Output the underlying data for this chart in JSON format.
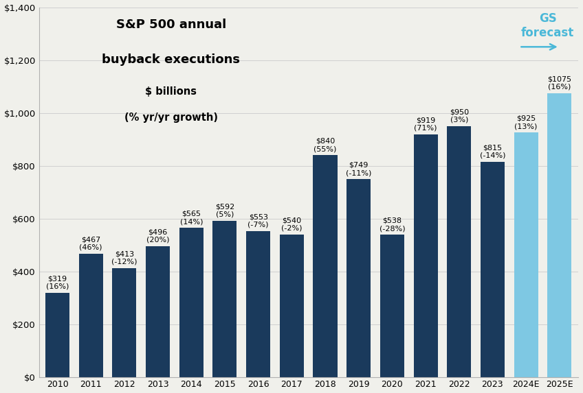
{
  "years": [
    "2010",
    "2011",
    "2012",
    "2013",
    "2014",
    "2015",
    "2016",
    "2017",
    "2018",
    "2019",
    "2020",
    "2021",
    "2022",
    "2023",
    "2024E",
    "2025E"
  ],
  "values": [
    319,
    467,
    413,
    496,
    565,
    592,
    553,
    540,
    840,
    749,
    538,
    919,
    950,
    815,
    925,
    1075
  ],
  "labels": [
    "$319\n(16%)",
    "$467\n(46%)",
    "$413\n(-12%)",
    "$496\n(20%)",
    "$565\n(14%)",
    "$592\n(5%)",
    "$553\n(-7%)",
    "$540\n(-2%)",
    "$840\n(55%)",
    "$749\n(-11%)",
    "$538\n(-28%)",
    "$919\n(71%)",
    "$950\n(3%)",
    "$815\n(-14%)",
    "$925\n(13%)",
    "$1075\n(16%)"
  ],
  "bar_colors": [
    "#1a3a5c",
    "#1a3a5c",
    "#1a3a5c",
    "#1a3a5c",
    "#1a3a5c",
    "#1a3a5c",
    "#1a3a5c",
    "#1a3a5c",
    "#1a3a5c",
    "#1a3a5c",
    "#1a3a5c",
    "#1a3a5c",
    "#1a3a5c",
    "#1a3a5c",
    "#7ec8e3",
    "#7ec8e3"
  ],
  "title_line1": "S&P 500 annual",
  "title_line2": "buyback executions",
  "title_line3": "$ billions",
  "title_line4": "(% yr/yr growth)",
  "gs_label": "GS\nforecast",
  "ylim": [
    0,
    1400
  ],
  "yticks": [
    0,
    200,
    400,
    600,
    800,
    1000,
    1200,
    1400
  ],
  "ytick_labels": [
    "$0",
    "$200",
    "$400",
    "$600",
    "$800",
    "$1,000",
    "$1,200",
    "$1,400"
  ],
  "background_color": "#f0f0eb",
  "dark_bar_color": "#1a3a5c",
  "light_bar_color": "#7ec8e3",
  "label_fontsize": 8.0,
  "gs_text_color": "#4ab8d8"
}
